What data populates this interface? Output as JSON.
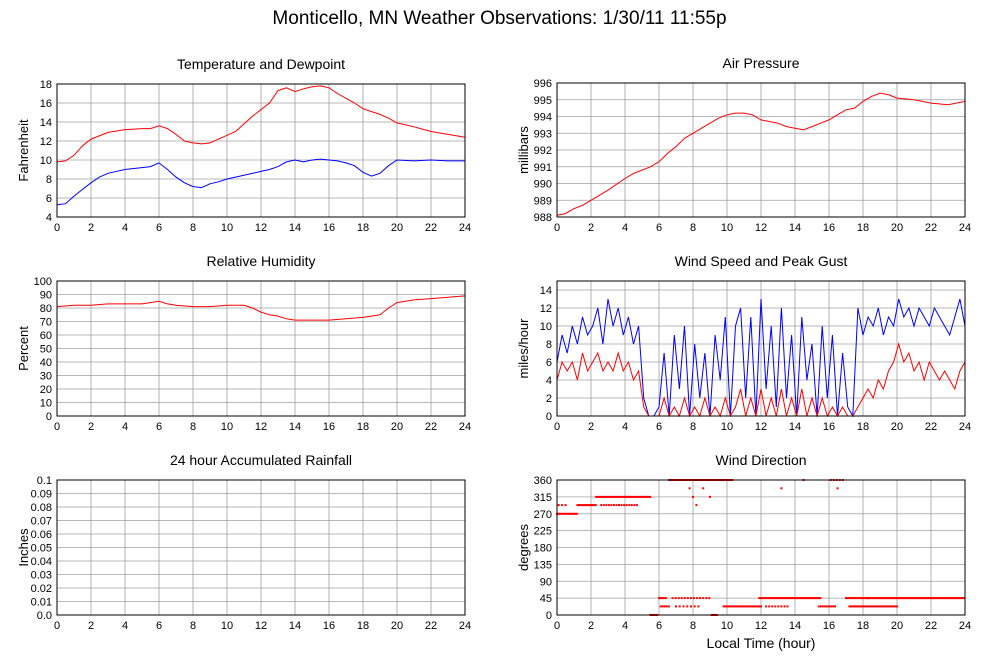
{
  "page": {
    "title": "Monticello, MN Weather Observations: 1/30/11 11:55p"
  },
  "colors": {
    "primary": "#ff0000",
    "secondary": "#0000ff",
    "grid": "#a0a0a0",
    "axis": "#000000"
  },
  "chart_data": [
    {
      "id": "temperature-dewpoint",
      "type": "line",
      "title": "Temperature and Dewpoint",
      "xlabel": "",
      "ylabel": "Fahrenheit",
      "xlim": [
        0,
        24
      ],
      "ylim": [
        4,
        18
      ],
      "xticks": [
        0,
        2,
        4,
        6,
        8,
        10,
        12,
        14,
        16,
        18,
        20,
        22,
        24
      ],
      "yticks": [
        4,
        6,
        8,
        10,
        12,
        14,
        16,
        18
      ],
      "grid": true,
      "series": [
        {
          "color": "#ff0000",
          "x": [
            0,
            0.5,
            1,
            1.5,
            2,
            3,
            4,
            5,
            5.5,
            6,
            6.5,
            7,
            7.5,
            8,
            8.5,
            9,
            9.5,
            10,
            10.5,
            11,
            11.5,
            12,
            12.5,
            13,
            13.5,
            14,
            14.5,
            15,
            15.5,
            16,
            16.5,
            17,
            17.5,
            18,
            18.5,
            19,
            19.5,
            20,
            21,
            22,
            23,
            24
          ],
          "y": [
            9.8,
            9.9,
            10.5,
            11.5,
            12.2,
            12.9,
            13.2,
            13.3,
            13.3,
            13.6,
            13.3,
            12.7,
            12.0,
            11.8,
            11.7,
            11.8,
            12.2,
            12.6,
            13.0,
            13.8,
            14.6,
            15.3,
            16.0,
            17.3,
            17.6,
            17.2,
            17.5,
            17.7,
            17.8,
            17.6,
            17.0,
            16.5,
            16.0,
            15.4,
            15.1,
            14.8,
            14.4,
            13.9,
            13.5,
            13.0,
            12.7,
            12.4
          ]
        },
        {
          "color": "#0000ff",
          "x": [
            0,
            0.5,
            1,
            1.5,
            2,
            2.5,
            3,
            4,
            5,
            5.5,
            6,
            6.5,
            7,
            7.5,
            8,
            8.5,
            9,
            9.5,
            10,
            11,
            12,
            12.5,
            13,
            13.5,
            14,
            14.5,
            15,
            15.5,
            16,
            16.5,
            17,
            17.5,
            18,
            18.5,
            19,
            19.5,
            20,
            21,
            22,
            23,
            24
          ],
          "y": [
            5.3,
            5.4,
            6.2,
            6.9,
            7.6,
            8.2,
            8.6,
            9.0,
            9.2,
            9.3,
            9.7,
            9.0,
            8.2,
            7.6,
            7.2,
            7.1,
            7.5,
            7.7,
            8.0,
            8.4,
            8.8,
            9.0,
            9.3,
            9.8,
            10.0,
            9.8,
            10.0,
            10.1,
            10.0,
            9.9,
            9.7,
            9.4,
            8.7,
            8.3,
            8.6,
            9.4,
            10.0,
            9.9,
            10.0,
            9.9,
            9.9
          ]
        }
      ]
    },
    {
      "id": "air-pressure",
      "type": "line",
      "title": "Air Pressure",
      "xlabel": "",
      "ylabel": "millibars",
      "xlim": [
        0,
        24
      ],
      "ylim": [
        988,
        996
      ],
      "xticks": [
        0,
        2,
        4,
        6,
        8,
        10,
        12,
        14,
        16,
        18,
        20,
        22,
        24
      ],
      "yticks": [
        988,
        989,
        990,
        991,
        992,
        993,
        994,
        995,
        996
      ],
      "grid": true,
      "series": [
        {
          "color": "#ff0000",
          "x": [
            0,
            0.5,
            1,
            1.5,
            2,
            3,
            4,
            4.5,
            5,
            5.5,
            6,
            6.5,
            7,
            7.5,
            8,
            8.5,
            9,
            9.5,
            10,
            10.5,
            11,
            11.5,
            12,
            12.5,
            13,
            13.5,
            14,
            14.5,
            15,
            15.5,
            16,
            16.5,
            17,
            17.5,
            18,
            18.5,
            19,
            19.5,
            20,
            21,
            22,
            23,
            24
          ],
          "y": [
            988.1,
            988.2,
            988.5,
            988.7,
            989.0,
            989.6,
            990.3,
            990.6,
            990.8,
            991.0,
            991.3,
            991.8,
            992.2,
            992.7,
            993.0,
            993.3,
            993.6,
            993.9,
            994.1,
            994.2,
            994.2,
            994.1,
            993.8,
            993.7,
            993.6,
            993.4,
            993.3,
            993.2,
            993.4,
            993.6,
            993.8,
            994.1,
            994.4,
            994.5,
            994.9,
            995.2,
            995.4,
            995.3,
            995.1,
            995.0,
            994.8,
            994.7,
            994.9
          ]
        }
      ]
    },
    {
      "id": "relative-humidity",
      "type": "line",
      "title": "Relative Humidity",
      "xlabel": "",
      "ylabel": "Percent",
      "xlim": [
        0,
        24
      ],
      "ylim": [
        0,
        100
      ],
      "xticks": [
        0,
        2,
        4,
        6,
        8,
        10,
        12,
        14,
        16,
        18,
        20,
        22,
        24
      ],
      "yticks": [
        0,
        10,
        20,
        30,
        40,
        50,
        60,
        70,
        80,
        90,
        100
      ],
      "grid": true,
      "series": [
        {
          "color": "#ff0000",
          "x": [
            0,
            1,
            2,
            3,
            4,
            5,
            6,
            6.5,
            7,
            8,
            9,
            10,
            11,
            11.5,
            12,
            12.5,
            13,
            13.5,
            14,
            15,
            16,
            17,
            18,
            18.5,
            19,
            19.5,
            20,
            21,
            22,
            23,
            24
          ],
          "y": [
            81,
            82,
            82,
            83,
            83,
            83,
            85,
            83,
            82,
            81,
            81,
            82,
            82,
            80,
            77,
            75,
            74,
            72,
            71,
            71,
            71,
            72,
            73,
            74,
            75,
            80,
            84,
            86,
            87,
            88,
            89
          ]
        }
      ]
    },
    {
      "id": "wind-speed-gust",
      "type": "line",
      "title": "Wind Speed and Peak Gust",
      "xlabel": "",
      "ylabel": "miles/hour",
      "xlim": [
        0,
        24
      ],
      "ylim": [
        0,
        15
      ],
      "xticks": [
        0,
        2,
        4,
        6,
        8,
        10,
        12,
        14,
        16,
        18,
        20,
        22,
        24
      ],
      "yticks": [
        0,
        2,
        4,
        6,
        8,
        10,
        12,
        14
      ],
      "grid": true,
      "series": [
        {
          "color": "#0000ff",
          "x": [
            0,
            0.3,
            0.6,
            0.9,
            1.2,
            1.5,
            1.8,
            2.1,
            2.4,
            2.7,
            3.0,
            3.3,
            3.6,
            3.9,
            4.2,
            4.5,
            4.8,
            5.1,
            5.4,
            5.7,
            6.0,
            6.3,
            6.6,
            6.9,
            7.2,
            7.5,
            7.8,
            8.1,
            8.4,
            8.7,
            9.0,
            9.3,
            9.6,
            9.9,
            10.2,
            10.5,
            10.8,
            11.1,
            11.4,
            11.7,
            12.0,
            12.3,
            12.6,
            12.9,
            13.2,
            13.5,
            13.8,
            14.1,
            14.4,
            14.7,
            15.0,
            15.3,
            15.6,
            15.9,
            16.2,
            16.5,
            16.8,
            17.1,
            17.4,
            17.7,
            18.0,
            18.3,
            18.6,
            18.9,
            19.2,
            19.5,
            19.8,
            20.1,
            20.4,
            20.7,
            21.0,
            21.3,
            21.6,
            21.9,
            22.2,
            22.5,
            22.8,
            23.1,
            23.4,
            23.7,
            24.0
          ],
          "y": [
            6,
            9,
            7,
            10,
            8,
            11,
            9,
            10,
            12,
            8,
            13,
            10,
            12,
            9,
            11,
            8,
            10,
            2,
            0,
            0,
            1,
            7,
            0,
            9,
            3,
            10,
            0,
            8,
            2,
            7,
            0,
            9,
            4,
            11,
            0,
            10,
            12,
            2,
            11,
            0,
            13,
            3,
            10,
            1,
            12,
            2,
            9,
            0,
            11,
            4,
            8,
            0,
            10,
            2,
            9,
            0,
            7,
            1,
            0,
            12,
            9,
            11,
            10,
            12,
            9,
            11,
            10,
            13,
            11,
            12,
            10,
            12,
            11,
            10,
            12,
            11,
            10,
            9,
            11,
            13,
            10
          ]
        },
        {
          "color": "#ff0000",
          "x": [
            0,
            0.3,
            0.6,
            0.9,
            1.2,
            1.5,
            1.8,
            2.1,
            2.4,
            2.7,
            3.0,
            3.3,
            3.6,
            3.9,
            4.2,
            4.5,
            4.8,
            5.1,
            5.4,
            5.7,
            6.0,
            6.3,
            6.6,
            6.9,
            7.2,
            7.5,
            7.8,
            8.1,
            8.4,
            8.7,
            9.0,
            9.3,
            9.6,
            9.9,
            10.2,
            10.5,
            10.8,
            11.1,
            11.4,
            11.7,
            12.0,
            12.3,
            12.6,
            12.9,
            13.2,
            13.5,
            13.8,
            14.1,
            14.4,
            14.7,
            15.0,
            15.3,
            15.6,
            15.9,
            16.2,
            16.5,
            16.8,
            17.1,
            17.4,
            17.7,
            18.0,
            18.3,
            18.6,
            18.9,
            19.2,
            19.5,
            19.8,
            20.1,
            20.4,
            20.7,
            21.0,
            21.3,
            21.6,
            21.9,
            22.2,
            22.5,
            22.8,
            23.1,
            23.4,
            23.7,
            24.0
          ],
          "y": [
            4,
            6,
            5,
            6,
            4,
            7,
            5,
            6,
            7,
            5,
            6,
            5,
            7,
            5,
            6,
            4,
            5,
            1,
            0,
            0,
            0,
            2,
            0,
            1,
            0,
            2,
            0,
            1,
            0,
            2,
            0,
            1,
            0,
            2,
            0,
            1,
            3,
            0,
            2,
            0,
            3,
            0,
            2,
            0,
            3,
            0,
            2,
            0,
            3,
            0,
            2,
            0,
            2,
            0,
            1,
            0,
            1,
            0,
            0,
            1,
            2,
            3,
            2,
            4,
            3,
            5,
            6,
            8,
            6,
            7,
            5,
            6,
            4,
            6,
            5,
            4,
            5,
            4,
            3,
            5,
            6
          ]
        }
      ]
    },
    {
      "id": "accumulated-rainfall",
      "type": "line",
      "title": "24 hour Accumulated Rainfall",
      "xlabel": "",
      "ylabel": "Inches",
      "xlim": [
        0,
        24
      ],
      "ylim": [
        0,
        0.1
      ],
      "xticks": [
        0,
        2,
        4,
        6,
        8,
        10,
        12,
        14,
        16,
        18,
        20,
        22,
        24
      ],
      "yticks": [
        0.0,
        0.01,
        0.02,
        0.03,
        0.04,
        0.05,
        0.06,
        0.07,
        0.08,
        0.09,
        0.1
      ],
      "ytick_labels": [
        "0.0",
        "0.01",
        "0.02",
        "0.03",
        "0.04",
        "0.05",
        "0.06",
        "0.07",
        "0.08",
        "0.09",
        "0.1"
      ],
      "grid": true,
      "series": [
        {
          "color": "#ff0000",
          "x": [
            0,
            24
          ],
          "y": [
            0,
            0
          ]
        }
      ]
    },
    {
      "id": "wind-direction",
      "type": "scatter",
      "title": "Wind Direction",
      "xlabel": "Local Time (hour)",
      "ylabel": "degrees",
      "xlim": [
        0,
        24
      ],
      "ylim": [
        0,
        360
      ],
      "xticks": [
        0,
        2,
        4,
        6,
        8,
        10,
        12,
        14,
        16,
        18,
        20,
        22,
        24
      ],
      "yticks": [
        0,
        45,
        90,
        135,
        180,
        225,
        270,
        315,
        360
      ],
      "grid": true,
      "series": [
        {
          "color": "#ff0000",
          "segments": [
            {
              "x0": 0.0,
              "x1": 1.2,
              "y": 270,
              "step": 0.09
            },
            {
              "x0": 0.1,
              "x1": 0.5,
              "y": 293,
              "step": 0.2
            },
            {
              "x0": 1.2,
              "x1": 2.3,
              "y": 293,
              "step": 0.09
            },
            {
              "x0": 2.3,
              "x1": 4.2,
              "y": 315,
              "step": 0.09
            },
            {
              "x0": 2.6,
              "x1": 4.8,
              "y": 293,
              "step": 0.15
            },
            {
              "x0": 4.2,
              "x1": 5.5,
              "y": 315,
              "step": 0.08
            },
            {
              "x0": 5.5,
              "x1": 5.9,
              "y": 0,
              "step": 0.08
            },
            {
              "x0": 6.0,
              "x1": 6.4,
              "y": 45,
              "step": 0.1
            },
            {
              "x0": 6.1,
              "x1": 6.6,
              "y": 23,
              "step": 0.12
            },
            {
              "x0": 6.6,
              "x1": 10.3,
              "y": 360,
              "step": 0.1
            },
            {
              "x0": 6.8,
              "x1": 9.0,
              "y": 45,
              "step": 0.18
            },
            {
              "x0": 7.0,
              "x1": 8.4,
              "y": 23,
              "step": 0.22
            },
            {
              "x0": 9.1,
              "x1": 9.4,
              "y": 0,
              "step": 0.1
            },
            {
              "x0": 9.8,
              "x1": 12.0,
              "y": 23,
              "step": 0.1
            },
            {
              "x0": 11.9,
              "x1": 15.5,
              "y": 45,
              "step": 0.08
            },
            {
              "x0": 12.3,
              "x1": 13.6,
              "y": 23,
              "step": 0.18
            },
            {
              "x0": 15.4,
              "x1": 16.4,
              "y": 23,
              "step": 0.12
            },
            {
              "x0": 16.1,
              "x1": 16.9,
              "y": 360,
              "step": 0.18
            },
            {
              "x0": 17.0,
              "x1": 18.4,
              "y": 45,
              "step": 0.09
            },
            {
              "x0": 17.2,
              "x1": 20.0,
              "y": 23,
              "step": 0.1
            },
            {
              "x0": 18.2,
              "x1": 24.0,
              "y": 45,
              "step": 0.07
            }
          ],
          "points": [
            {
              "x": 7.8,
              "y": 338
            },
            {
              "x": 8.0,
              "y": 315
            },
            {
              "x": 8.2,
              "y": 293
            },
            {
              "x": 8.6,
              "y": 338
            },
            {
              "x": 9.0,
              "y": 315
            },
            {
              "x": 13.2,
              "y": 338
            },
            {
              "x": 14.5,
              "y": 360
            },
            {
              "x": 16.5,
              "y": 338
            }
          ]
        }
      ]
    }
  ]
}
